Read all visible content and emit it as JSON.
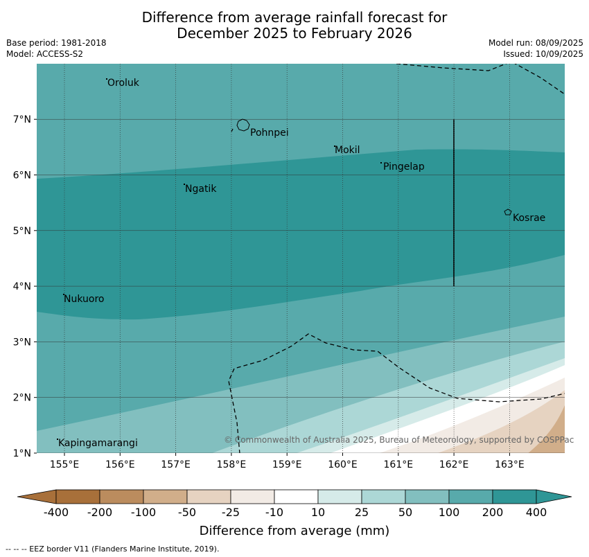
{
  "title": {
    "line1": "Difference from average rainfall forecast for",
    "line2": "December 2025 to February 2026"
  },
  "meta_left": {
    "base_period": "Base period: 1981-2018",
    "model": "Model: ACCESS-S2"
  },
  "meta_right": {
    "model_run": "Model run: 08/09/2025",
    "issued": "Issued: 10/09/2025"
  },
  "map": {
    "lon_ticks": [
      "155°E",
      "156°E",
      "157°E",
      "158°E",
      "159°E",
      "160°E",
      "161°E",
      "162°E",
      "163°E"
    ],
    "lat_ticks": [
      "1°N",
      "2°N",
      "3°N",
      "4°N",
      "5°N",
      "6°N",
      "7°N"
    ],
    "copyright": "© Commonwealth of Australia 2025, Bureau of Meteorology, supported by COSPPac",
    "places": [
      {
        "name": "Oroluk"
      },
      {
        "name": "Pohnpei"
      },
      {
        "name": "Mokil"
      },
      {
        "name": "Pingelap"
      },
      {
        "name": "Ngatik"
      },
      {
        "name": "Kosrae"
      },
      {
        "name": "Nukuoro"
      },
      {
        "name": "Kapingamarangi"
      }
    ]
  },
  "colorbar": {
    "title": "Difference from average (mm)",
    "ticks": [
      "-400",
      "-200",
      "-100",
      "-50",
      "-25",
      "-10",
      "10",
      "25",
      "50",
      "100",
      "200",
      "400"
    ],
    "colors": [
      "#a8703a",
      "#bb8c5e",
      "#d1ae8a",
      "#e6d3c1",
      "#f2ebe5",
      "#ffffff",
      "#d6ebe9",
      "#acd7d6",
      "#82bfbf",
      "#58aaab",
      "#2f9696"
    ]
  },
  "footnote": "--  --  -- EEZ border V11 (Flanders Marine Institute, 2019)."
}
